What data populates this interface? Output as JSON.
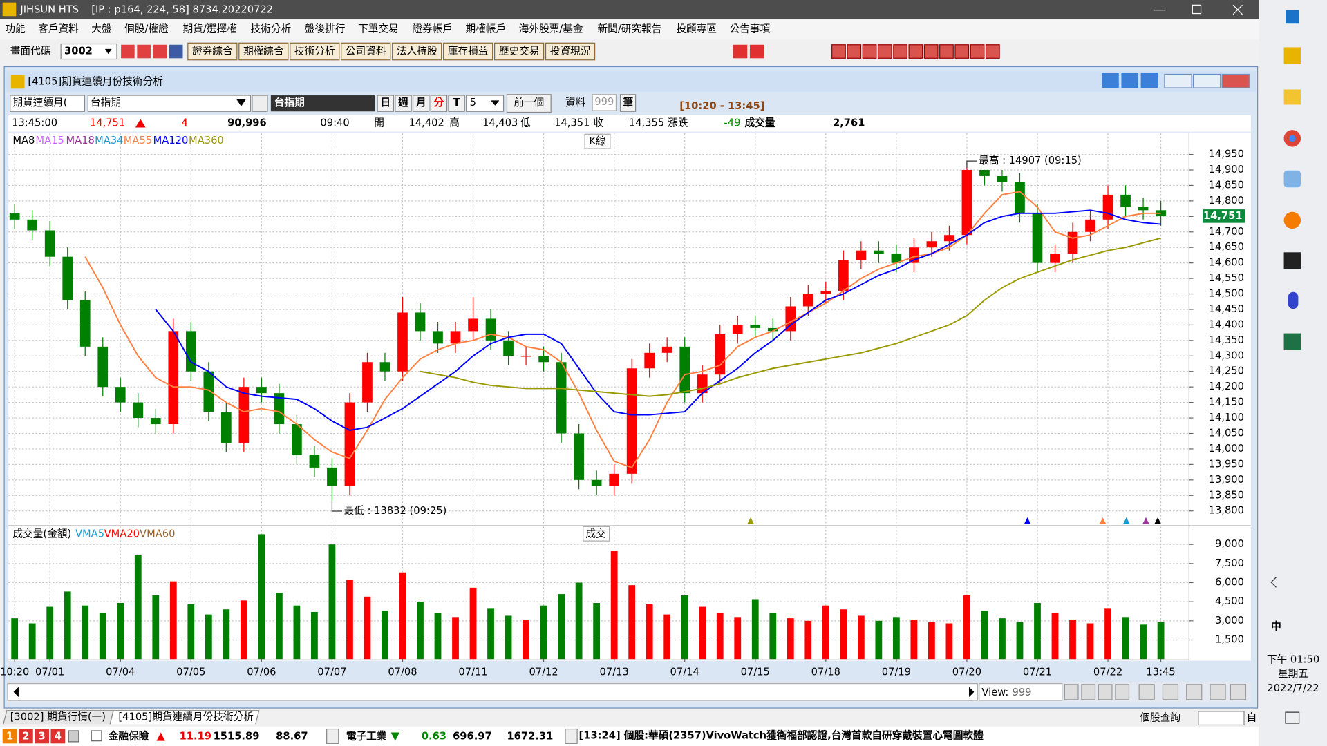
{
  "window": {
    "app": "JIHSUN HTS",
    "info": "[IP : p164, 224, 58] 8734.20220722"
  },
  "menu": [
    "功能",
    "客戶資料",
    "大盤",
    "個股/權證",
    "期貨/選擇權",
    "技術分析",
    "盤後排行",
    "下單交易",
    "證券帳戶",
    "期權帳戶",
    "海外股票/基金",
    "新聞/研究報告",
    "投顧專區",
    "公告事項"
  ],
  "toolbar": {
    "code_label": "畫面代碼",
    "code": "3002",
    "buttons": [
      "證券綜合",
      "期權綜合",
      "技術分析",
      "公司資料",
      "法人持股",
      "庫存損益",
      "歷史交易",
      "投資現況"
    ]
  },
  "panel": {
    "title": "[4105]期貨連續月份技術分析"
  },
  "controls": {
    "series": "期貨連續月(",
    "symbol": "台指期",
    "name": "台指期",
    "periods": [
      "日",
      "週",
      "月",
      "分",
      "T"
    ],
    "interval": "5",
    "prev": "前一個",
    "data_label": "資料",
    "count": "999",
    "count_unit": "筆",
    "range": "[10:20 - 13:45]"
  },
  "quote": {
    "time": "13:45:00",
    "price": "14,751",
    "change": "4",
    "total_volume": "90,996",
    "cursor_time": "09:40",
    "fields": [
      {
        "label": "開",
        "value": "14,402"
      },
      {
        "label": "高",
        "value": "14,403"
      },
      {
        "label": "低",
        "value": "14,351"
      },
      {
        "label": "收",
        "value": "14,355"
      },
      {
        "label": "漲跌",
        "value": "-49"
      },
      {
        "label": "成交量",
        "value": "2,761"
      }
    ]
  },
  "chart_data": [
    {
      "type": "candlestick",
      "label": "K線",
      "legend": [
        {
          "name": "MA8",
          "color": "#000000"
        },
        {
          "name": "MA15",
          "color": "#cc66ff"
        },
        {
          "name": "MA18",
          "color": "#993399"
        },
        {
          "name": "MA34",
          "color": "#1a9ad6"
        },
        {
          "name": "MA55",
          "color": "#ff8040"
        },
        {
          "name": "MA120",
          "color": "#0000ff"
        },
        {
          "name": "MA360",
          "color": "#999900"
        }
      ],
      "up_color": "#ff0000",
      "down_color": "#008000",
      "open": [
        14760,
        14740,
        14705,
        14620,
        14480,
        14330,
        14200,
        14150,
        14100,
        14080,
        14380,
        14250,
        14120,
        14020,
        14200,
        14180,
        14080,
        13980,
        13940,
        13880,
        14150,
        14280,
        14250,
        14440,
        14380,
        14340,
        14380,
        14420,
        14350,
        14300,
        14300,
        14280,
        14050,
        13900,
        13880,
        13920,
        14260,
        14310,
        14330,
        14180,
        14240,
        14370,
        14400,
        14390,
        14380,
        14460,
        14500,
        14510,
        14610,
        14640,
        14630,
        14600,
        14650,
        14670,
        14690,
        14900,
        14880,
        14860,
        14760,
        14600,
        14630,
        14700,
        14740,
        14820,
        14780,
        14770
      ],
      "high": [
        14790,
        14770,
        14735,
        14650,
        14510,
        14360,
        14230,
        14180,
        14130,
        14420,
        14410,
        14280,
        14150,
        14230,
        14230,
        14210,
        14110,
        14010,
        13970,
        14180,
        14310,
        14310,
        14490,
        14470,
        14410,
        14410,
        14490,
        14450,
        14380,
        14330,
        14330,
        14310,
        14080,
        13930,
        13950,
        14290,
        14340,
        14360,
        14360,
        14270,
        14400,
        14430,
        14430,
        14420,
        14490,
        14530,
        14540,
        14640,
        14670,
        14670,
        14660,
        14680,
        14700,
        14720,
        14907,
        14900,
        14900,
        14890,
        14790,
        14660,
        14730,
        14770,
        14850,
        14850,
        14810,
        14800
      ],
      "low": [
        14710,
        14675,
        14590,
        14450,
        14300,
        14170,
        14120,
        14070,
        14050,
        14050,
        14220,
        14090,
        13990,
        13990,
        14150,
        14050,
        13950,
        13910,
        13832,
        13850,
        14120,
        14220,
        14220,
        14350,
        14310,
        14310,
        14350,
        14320,
        14270,
        14270,
        14250,
        14020,
        13870,
        13850,
        13850,
        13890,
        14230,
        14280,
        14150,
        14150,
        14210,
        14340,
        14360,
        14350,
        14350,
        14430,
        14470,
        14480,
        14580,
        14600,
        14570,
        14570,
        14620,
        14640,
        14660,
        14850,
        14830,
        14730,
        14570,
        14570,
        14600,
        14670,
        14710,
        14750,
        14740,
        14720
      ],
      "close": [
        14740,
        14705,
        14620,
        14480,
        14330,
        14200,
        14150,
        14100,
        14080,
        14380,
        14250,
        14120,
        14020,
        14200,
        14180,
        14080,
        13980,
        13940,
        13880,
        14150,
        14280,
        14250,
        14440,
        14380,
        14340,
        14380,
        14420,
        14350,
        14300,
        14300,
        14280,
        14050,
        13900,
        13880,
        13920,
        14260,
        14310,
        14330,
        14180,
        14240,
        14370,
        14400,
        14390,
        14380,
        14460,
        14500,
        14510,
        14610,
        14640,
        14630,
        14600,
        14650,
        14670,
        14690,
        14900,
        14880,
        14860,
        14760,
        14600,
        14630,
        14700,
        14740,
        14820,
        14780,
        14770,
        14751
      ],
      "lines": [
        {
          "color": "#ff8040",
          "values": [
            null,
            null,
            null,
            null,
            14620,
            14520,
            14400,
            14300,
            14230,
            14200,
            14200,
            14190,
            14150,
            14120,
            14130,
            14120,
            14080,
            14030,
            13990,
            13970,
            14060,
            14160,
            14230,
            14290,
            14320,
            14340,
            14350,
            14370,
            14360,
            14330,
            14320,
            14280,
            14180,
            14060,
            13960,
            13940,
            14030,
            14150,
            14240,
            14250,
            14270,
            14330,
            14360,
            14380,
            14410,
            14440,
            14470,
            14510,
            14550,
            14580,
            14600,
            14620,
            14630,
            14650,
            14690,
            14760,
            14820,
            14830,
            14780,
            14700,
            14680,
            14690,
            14720,
            14750,
            14760,
            14760
          ]
        },
        {
          "color": "#0000ff",
          "values": [
            null,
            null,
            null,
            null,
            null,
            null,
            null,
            null,
            14450,
            14380,
            14280,
            14250,
            14200,
            14180,
            14170,
            14165,
            14160,
            14130,
            14090,
            14060,
            14070,
            14100,
            14130,
            14170,
            14210,
            14250,
            14300,
            14340,
            14360,
            14370,
            14370,
            14340,
            14260,
            14180,
            14120,
            14110,
            14110,
            14115,
            14120,
            14180,
            14220,
            14260,
            14310,
            14350,
            14400,
            14440,
            14480,
            14500,
            14530,
            14560,
            14580,
            14610,
            14630,
            14660,
            14690,
            14730,
            14750,
            14760,
            14760,
            14760,
            14765,
            14770,
            14760,
            14740,
            14730,
            14725
          ]
        },
        {
          "color": "#999900",
          "values": [
            null,
            null,
            null,
            null,
            null,
            null,
            null,
            null,
            null,
            null,
            null,
            null,
            null,
            null,
            null,
            null,
            null,
            null,
            null,
            null,
            null,
            null,
            null,
            14250,
            14240,
            14230,
            14215,
            14205,
            14200,
            14195,
            14195,
            14195,
            14190,
            14185,
            14180,
            14175,
            14170,
            14175,
            14185,
            14195,
            14210,
            14230,
            14245,
            14260,
            14270,
            14280,
            14290,
            14300,
            14310,
            14325,
            14340,
            14360,
            14380,
            14400,
            14430,
            14480,
            14520,
            14550,
            14570,
            14590,
            14610,
            14625,
            14640,
            14650,
            14665,
            14680
          ]
        }
      ],
      "annotations": [
        {
          "text": "最高 : 14907 (09:15)",
          "x": 54,
          "y": 14907
        },
        {
          "text": "最低 : 13832 (09:25)",
          "x": 18,
          "y": 13832
        }
      ],
      "last_price": {
        "value": 14751,
        "label": "14,751"
      },
      "xlim": [
        -0.35,
        66.6
      ],
      "ylim": [
        13755,
        15018
      ],
      "yticks": [
        {
          "value": 14950,
          "label": "14,950"
        },
        {
          "value": 14900,
          "label": "14,900"
        },
        {
          "value": 14850,
          "label": "14,850"
        },
        {
          "value": 14800,
          "label": "14,800"
        },
        {
          "value": 14750,
          "label": "14,750"
        },
        {
          "value": 14700,
          "label": "14,700"
        },
        {
          "value": 14650,
          "label": "14,650"
        },
        {
          "value": 14600,
          "label": "14,600"
        },
        {
          "value": 14550,
          "label": "14,550"
        },
        {
          "value": 14500,
          "label": "14,500"
        },
        {
          "value": 14450,
          "label": "14,450"
        },
        {
          "value": 14400,
          "label": "14,400"
        },
        {
          "value": 14350,
          "label": "14,350"
        },
        {
          "value": 14300,
          "label": "14,300"
        },
        {
          "value": 14250,
          "label": "14,250"
        },
        {
          "value": 14200,
          "label": "14,200"
        },
        {
          "value": 14150,
          "label": "14,150"
        },
        {
          "value": 14100,
          "label": "14,100"
        },
        {
          "value": 14050,
          "label": "14,050"
        },
        {
          "value": 14000,
          "label": "14,000"
        },
        {
          "value": 13950,
          "label": "13,950"
        },
        {
          "value": 13900,
          "label": "13,900"
        },
        {
          "value": 13850,
          "label": "13,850"
        },
        {
          "value": 13800,
          "label": "13,800"
        }
      ],
      "grid": true
    },
    {
      "type": "bar",
      "title": "成交量(金額)",
      "label": "成交",
      "legend": [
        {
          "name": "VMA5",
          "color": "#1a9ad6"
        },
        {
          "name": "VMA20",
          "color": "#ff0000"
        },
        {
          "name": "VMA60",
          "color": "#996633"
        }
      ],
      "values": [
        3200,
        2800,
        4100,
        5300,
        4200,
        3600,
        4400,
        8200,
        5000,
        6100,
        4300,
        3500,
        3900,
        4600,
        9800,
        5200,
        4200,
        3700,
        9000,
        6200,
        4900,
        3800,
        6800,
        4500,
        3600,
        3300,
        5600,
        4000,
        3400,
        3100,
        4200,
        5100,
        6000,
        4400,
        8500,
        5800,
        4300,
        3500,
        5000,
        4100,
        3600,
        3300,
        4700,
        3600,
        3200,
        3000,
        4200,
        3900,
        3400,
        3000,
        3300,
        3100,
        2900,
        2800,
        5000,
        3800,
        3200,
        2900,
        4400,
        3600,
        3100,
        2800,
        4000,
        3300,
        2700,
        2900
      ],
      "xlim": [
        -0.35,
        66.6
      ],
      "ylim": [
        0,
        10400
      ],
      "xticks": [
        {
          "value": 0,
          "label": "10:20"
        },
        {
          "value": 2,
          "label": "07/01"
        },
        {
          "value": 6,
          "label": "07/04"
        },
        {
          "value": 10,
          "label": "07/05"
        },
        {
          "value": 14,
          "label": "07/06"
        },
        {
          "value": 18,
          "label": "07/07"
        },
        {
          "value": 22,
          "label": "07/08"
        },
        {
          "value": 26,
          "label": "07/11"
        },
        {
          "value": 30,
          "label": "07/12"
        },
        {
          "value": 34,
          "label": "07/13"
        },
        {
          "value": 38,
          "label": "07/14"
        },
        {
          "value": 42,
          "label": "07/15"
        },
        {
          "value": 46,
          "label": "07/18"
        },
        {
          "value": 50,
          "label": "07/19"
        },
        {
          "value": 54,
          "label": "07/20"
        },
        {
          "value": 58,
          "label": "07/21"
        },
        {
          "value": 62,
          "label": "07/22"
        },
        {
          "value": 65,
          "label": "13:45"
        }
      ],
      "yticks": [
        {
          "value": 9000,
          "label": "9,000"
        },
        {
          "value": 7500,
          "label": "7,500"
        },
        {
          "value": 6000,
          "label": "6,000"
        },
        {
          "value": 4500,
          "label": "4,500"
        },
        {
          "value": 3000,
          "label": "3,000"
        },
        {
          "value": 1500,
          "label": "1,500"
        }
      ],
      "grid": true
    }
  ],
  "footer": {
    "view_label": "View:",
    "view": "999",
    "tabs": [
      "[3002] 期貨行情(一)",
      "[4105]期貨連續月份技術分析"
    ],
    "search": "個股查詢",
    "search_btn": "自",
    "pages": [
      "1",
      "2",
      "3",
      "4"
    ],
    "ticker": [
      {
        "name": "金融保險",
        "values": [
          "11.19",
          "1515.89",
          "88.67"
        ]
      },
      {
        "name": "電子工業",
        "values": [
          "0.63",
          "696.97",
          "1672.31"
        ]
      }
    ],
    "news": "[13:24] 個股:華碩(2357)VivoWatch獲衛福部認證,台灣首款自研穿戴裝置心電圖軟體"
  },
  "taskbar": {
    "time": "下午 01:50",
    "weekday": "星期五",
    "date": "2022/7/22",
    "ime": "中"
  }
}
